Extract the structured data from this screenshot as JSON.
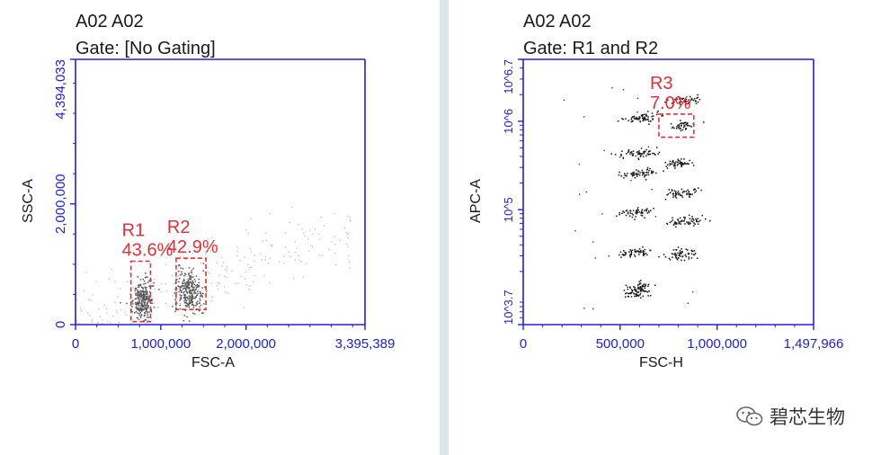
{
  "chart_data": [
    {
      "type": "scatter",
      "sample_label": "A02 A02",
      "gate_label": "Gate: [No Gating]",
      "xlabel": "FSC-A",
      "ylabel": "SSC-A",
      "xlim": [
        0,
        3395389
      ],
      "ylim": [
        0,
        4394033
      ],
      "x_ticks": [
        {
          "value": 0,
          "label": "0"
        },
        {
          "value": 1000000,
          "label": "1,000,000"
        },
        {
          "value": 2000000,
          "label": "2,000,000"
        },
        {
          "value": 3395389,
          "label": "3,395,389"
        }
      ],
      "y_ticks": [
        {
          "value": 0,
          "label": "0"
        },
        {
          "value": 2000000,
          "label": "2,000,000"
        },
        {
          "value": 4394033,
          "label": "4,394,033"
        }
      ],
      "regions": [
        {
          "name": "R1",
          "percent": "43.6%",
          "x_range": [
            650000,
            880000
          ],
          "y_range": [
            50000,
            1050000
          ]
        },
        {
          "name": "R2",
          "percent": "42.9%",
          "x_range": [
            1180000,
            1530000
          ],
          "y_range": [
            250000,
            1100000
          ]
        }
      ],
      "clusters": [
        {
          "x": 780000,
          "y": 420000,
          "sx": 55000,
          "sy": 170000,
          "n": 260
        },
        {
          "x": 1330000,
          "y": 560000,
          "sx": 85000,
          "sy": 190000,
          "n": 280
        }
      ],
      "background_points": 220
    },
    {
      "type": "scatter",
      "sample_label": "A02 A02",
      "gate_label": "Gate: R1 and R2",
      "xlabel": "FSC-H",
      "ylabel": "APC-A",
      "xlim": [
        0,
        1497966
      ],
      "ylim": [
        3.7,
        6.7
      ],
      "y_scale": "log",
      "x_ticks": [
        {
          "value": 0,
          "label": "0"
        },
        {
          "value": 500000,
          "label": "500,000"
        },
        {
          "value": 1000000,
          "label": "1,000,000"
        },
        {
          "value": 1497966,
          "label": "1,497,966"
        }
      ],
      "y_ticks": [
        {
          "value": 3.7,
          "label": "10^3.7"
        },
        {
          "value": 5,
          "label": "10^5"
        },
        {
          "value": 6,
          "label": "10^6"
        },
        {
          "value": 6.7,
          "label": "10^6.7"
        }
      ],
      "regions": [
        {
          "name": "R3",
          "percent": "7.0%",
          "x_range": [
            700000,
            880000
          ],
          "y_range": [
            5.82,
            6.08
          ]
        }
      ],
      "clusters": [
        {
          "x": 590000,
          "y": 4.1,
          "sx": 35000,
          "sy": 0.05,
          "n": 90
        },
        {
          "x": 570000,
          "y": 4.52,
          "sx": 45000,
          "sy": 0.025,
          "n": 55
        },
        {
          "x": 580000,
          "y": 4.98,
          "sx": 45000,
          "sy": 0.025,
          "n": 55
        },
        {
          "x": 590000,
          "y": 5.42,
          "sx": 50000,
          "sy": 0.025,
          "n": 60
        },
        {
          "x": 590000,
          "y": 5.64,
          "sx": 50000,
          "sy": 0.025,
          "n": 60
        },
        {
          "x": 610000,
          "y": 6.04,
          "sx": 50000,
          "sy": 0.025,
          "n": 65
        },
        {
          "x": 810000,
          "y": 4.5,
          "sx": 50000,
          "sy": 0.035,
          "n": 60
        },
        {
          "x": 830000,
          "y": 4.87,
          "sx": 50000,
          "sy": 0.025,
          "n": 60
        },
        {
          "x": 820000,
          "y": 5.2,
          "sx": 45000,
          "sy": 0.025,
          "n": 55
        },
        {
          "x": 800000,
          "y": 5.53,
          "sx": 40000,
          "sy": 0.025,
          "n": 45
        },
        {
          "x": 820000,
          "y": 5.96,
          "sx": 40000,
          "sy": 0.025,
          "n": 40
        },
        {
          "x": 830000,
          "y": 6.24,
          "sx": 45000,
          "sy": 0.025,
          "n": 45
        }
      ],
      "background_points": 25
    }
  ],
  "watermark": {
    "text": "碧芯生物",
    "icon": "wechat-icon"
  },
  "colors": {
    "axis": "#2020d0",
    "gate": "#e0303a",
    "dot_left": "#555555",
    "dot_right": "#111111",
    "background": "#dfe6ea"
  }
}
